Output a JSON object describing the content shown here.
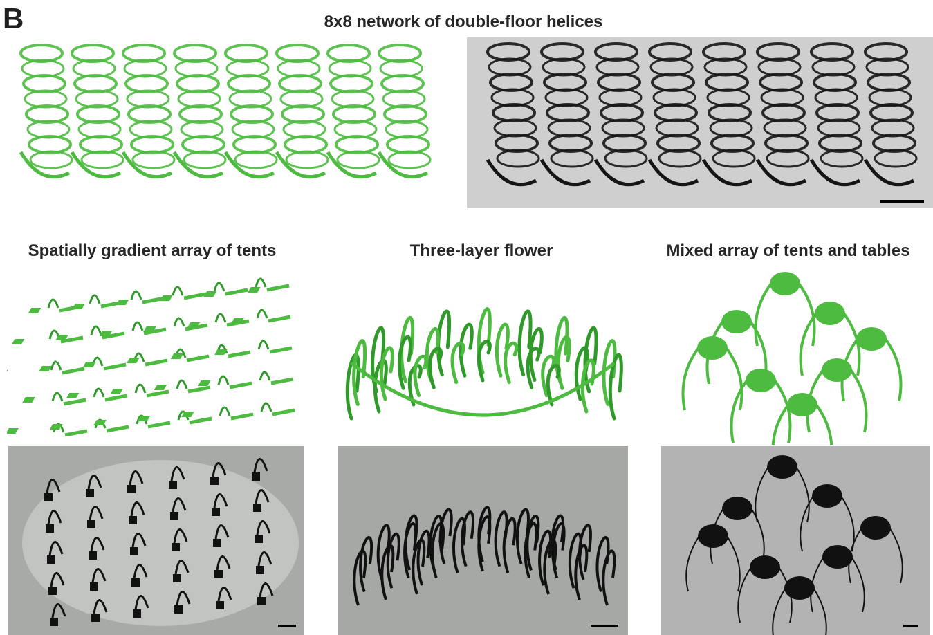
{
  "panel_label": "B",
  "titles": {
    "helices": "8x8 network of double-floor helices",
    "tents": "Spatially gradient array of tents",
    "flower": "Three-layer flower",
    "mixed": "Mixed array of tents and tables"
  },
  "colors": {
    "model_green": "#4cbb3f",
    "model_green_dark": "#2f9a2a",
    "photo_bg": "#a9a9a9",
    "photo_dark": "#111111"
  }
}
